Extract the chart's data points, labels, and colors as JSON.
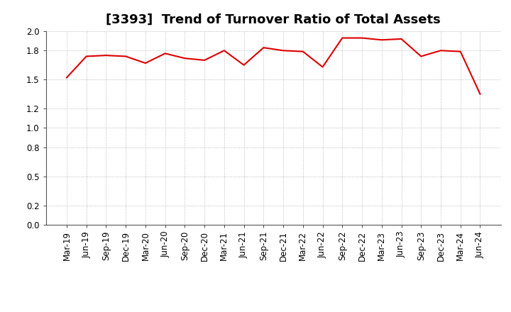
{
  "title": "[3393]  Trend of Turnover Ratio of Total Assets",
  "labels": [
    "Mar-19",
    "Jun-19",
    "Sep-19",
    "Dec-19",
    "Mar-20",
    "Jun-20",
    "Sep-20",
    "Dec-20",
    "Mar-21",
    "Jun-21",
    "Sep-21",
    "Dec-21",
    "Mar-22",
    "Jun-22",
    "Sep-22",
    "Dec-22",
    "Mar-23",
    "Jun-23",
    "Sep-23",
    "Dec-23",
    "Mar-24",
    "Jun-24"
  ],
  "values": [
    1.52,
    1.74,
    1.75,
    1.74,
    1.67,
    1.77,
    1.72,
    1.7,
    1.8,
    1.65,
    1.83,
    1.8,
    1.79,
    1.63,
    1.93,
    1.93,
    1.91,
    1.92,
    1.74,
    1.8,
    1.79,
    1.35
  ],
  "ylim": [
    0.0,
    2.0
  ],
  "yticks": [
    0.0,
    0.2,
    0.5,
    0.8,
    1.0,
    1.2,
    1.5,
    1.8,
    2.0
  ],
  "line_color": "#dd0000",
  "background_color": "#ffffff",
  "grid_color": "#aaaaaa",
  "title_fontsize": 13,
  "tick_fontsize": 8.5,
  "title_fontweight": "bold",
  "figsize": [
    7.2,
    4.4
  ],
  "dpi": 100
}
